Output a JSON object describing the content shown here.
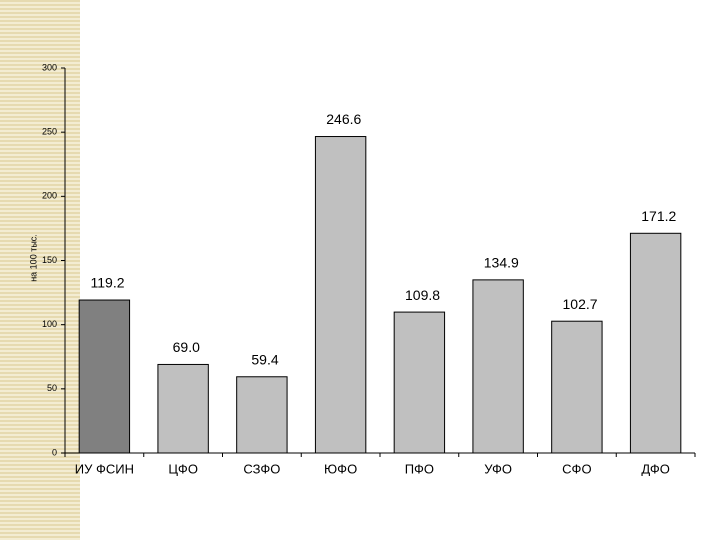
{
  "chart_data": {
    "type": "bar",
    "y_label": "на 100 тыс.",
    "categories": [
      "ИУ ФСИН",
      "ЦФО",
      "СЗФО",
      "ЮФО",
      "ПФО",
      "УФО",
      "СФО",
      "ДФО"
    ],
    "values": [
      119.2,
      69.0,
      59.4,
      246.6,
      109.8,
      134.9,
      102.7,
      171.2
    ],
    "value_labels": [
      "119.2",
      "69.0",
      "59.4",
      "246.6",
      "109.8",
      "134.9",
      "102.7",
      "171.2"
    ],
    "colors": [
      "#808080",
      "#c0c0c0",
      "#c0c0c0",
      "#c0c0c0",
      "#c0c0c0",
      "#c0c0c0",
      "#c0c0c0",
      "#c0c0c0"
    ],
    "ylim": [
      0,
      300
    ],
    "yticks": [
      0,
      50,
      100,
      150,
      200,
      250,
      300
    ],
    "grid": false
  }
}
